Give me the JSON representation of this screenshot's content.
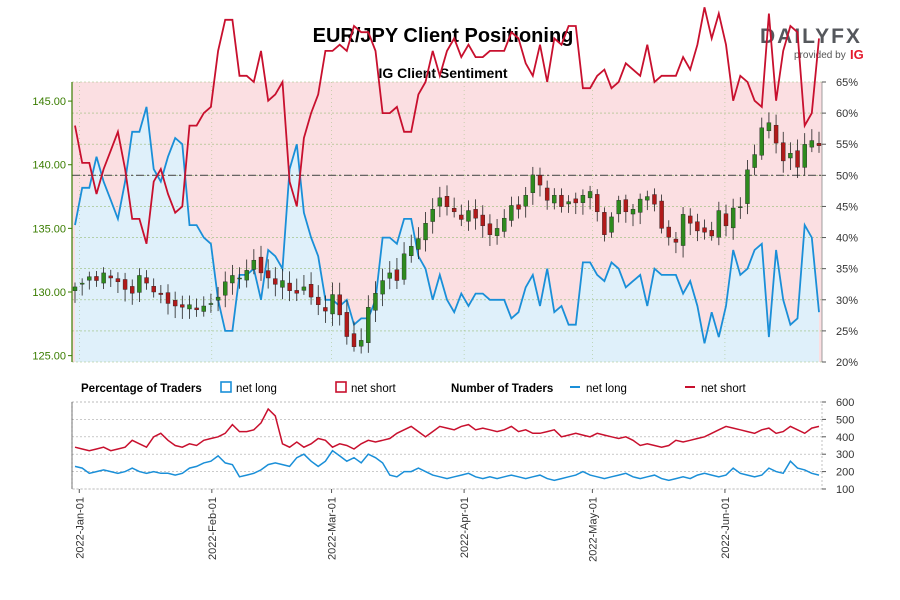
{
  "header": {
    "title": "EUR/JPY Client Positioning",
    "subtitle": "IG Client Sentiment"
  },
  "logo": {
    "text": "DAILYFX",
    "provided_by": "provided by",
    "ig": "IG",
    "color": "#55575c",
    "accent": "#e4192c"
  },
  "legend": {
    "pct_heading": "Percentage of Traders",
    "num_heading": "Number of Traders",
    "net_long": "net long",
    "net_short": "net short"
  },
  "colors": {
    "long": "#1a8fd8",
    "short": "#c8102e",
    "short_fill": "#fbdfe2",
    "long_fill": "#dff0fa",
    "price_axis": "#3a7d00",
    "up_candle": "#2e8b1e",
    "down_candle": "#b11a1a"
  },
  "chart_data": {
    "type": "line",
    "title": "EUR/JPY Client Positioning",
    "subtitle": "IG Client Sentiment",
    "x_dates": [
      "2022-Jan-01",
      "2022-Feb-01",
      "2022-Mar-01",
      "2022-Apr-01",
      "2022-May-01",
      "2022-Jun-01"
    ],
    "date_range": [
      "2021-12-31",
      "2022-06-23"
    ],
    "price": {
      "ylim": [
        124.5,
        146.5
      ],
      "ticks": [
        "125.00",
        "130.00",
        "135.00",
        "140.00",
        "145.00"
      ],
      "close": [
        130.4,
        130.7,
        131.2,
        130.9,
        131.5,
        131.1,
        130.8,
        130.2,
        129.9,
        131.3,
        130.7,
        130.0,
        129.8,
        129.1,
        128.9,
        128.8,
        129.0,
        128.6,
        128.9,
        129.1,
        129.6,
        130.8,
        131.3,
        131.1,
        131.7,
        132.5,
        131.5,
        131.1,
        130.6,
        130.9,
        130.1,
        129.9,
        130.4,
        129.6,
        129.0,
        128.5,
        129.8,
        128.2,
        126.5,
        125.7,
        126.2,
        128.8,
        129.9,
        130.9,
        131.5,
        130.9,
        133.0,
        133.6,
        134.2,
        135.4,
        136.5,
        137.4,
        136.7,
        136.3,
        135.7,
        136.4,
        135.8,
        135.2,
        134.5,
        135.0,
        135.8,
        136.8,
        136.5,
        137.6,
        139.2,
        138.4,
        137.2,
        137.6,
        136.7,
        137.1,
        137.0,
        137.6,
        137.9,
        136.3,
        134.5,
        135.9,
        137.2,
        136.3,
        136.5,
        137.3,
        137.5,
        136.9,
        135.0,
        134.3,
        133.9,
        136.1,
        135.4,
        134.8,
        134.7,
        134.4,
        136.4,
        135.2,
        136.6,
        136.7,
        139.6,
        140.8,
        142.9,
        143.3,
        141.7,
        140.3,
        140.9,
        139.8,
        141.6,
        141.9,
        141.5
      ],
      "candles": "daily OHLC, green=up, red=down"
    },
    "sentiment": {
      "ylim": [
        20,
        65
      ],
      "ticks": [
        "20%",
        "25%",
        "30%",
        "35%",
        "40%",
        "45%",
        "50%",
        "55%",
        "60%",
        "65%"
      ],
      "net_short_pct": [
        58,
        52,
        52,
        47,
        51,
        54,
        57,
        51,
        43,
        43,
        39,
        49,
        51,
        47,
        44,
        45,
        58,
        58,
        60,
        61,
        70,
        75,
        75,
        66,
        66,
        65,
        70,
        62,
        63,
        65,
        49,
        45,
        56,
        60,
        63,
        70,
        70,
        71,
        70,
        74,
        73,
        73,
        70,
        60,
        60,
        61,
        57,
        57,
        63,
        65,
        70,
        66,
        70,
        72,
        69,
        71,
        69,
        69,
        70,
        70,
        70,
        73,
        72,
        68,
        66,
        71,
        65,
        72,
        71,
        74,
        74,
        64,
        64,
        66,
        67,
        64,
        65,
        68,
        67,
        66,
        71,
        65,
        66,
        66,
        66,
        69,
        67,
        71,
        77,
        72,
        76,
        71,
        62,
        66,
        65,
        62,
        61,
        76,
        62,
        70,
        74,
        73,
        58,
        60,
        72
      ],
      "net_long_pct": [
        42,
        48,
        48,
        53,
        49,
        46,
        43,
        49,
        57,
        57,
        61,
        51,
        49,
        53,
        56,
        55,
        42,
        42,
        40,
        39,
        30,
        25,
        25,
        34,
        34,
        35,
        30,
        38,
        37,
        35,
        51,
        55,
        44,
        40,
        37,
        30,
        30,
        29,
        30,
        26,
        27,
        27,
        30,
        40,
        40,
        39,
        43,
        43,
        37,
        35,
        30,
        34,
        30,
        28,
        31,
        29,
        31,
        31,
        30,
        30,
        30,
        27,
        28,
        32,
        34,
        29,
        35,
        28,
        29,
        26,
        26,
        36,
        36,
        34,
        33,
        36,
        35,
        32,
        33,
        34,
        29,
        35,
        34,
        34,
        34,
        31,
        33,
        29,
        23,
        28,
        24,
        29,
        38,
        34,
        35,
        38,
        39,
        24,
        38,
        30,
        26,
        27,
        42,
        40,
        28
      ]
    },
    "traders": {
      "ylim": [
        100,
        600
      ],
      "ticks": [
        "100",
        "200",
        "300",
        "400",
        "500",
        "600"
      ],
      "net_long": [
        230,
        220,
        190,
        200,
        210,
        200,
        190,
        200,
        220,
        200,
        190,
        200,
        190,
        190,
        180,
        190,
        220,
        230,
        250,
        260,
        290,
        250,
        240,
        170,
        180,
        190,
        210,
        240,
        250,
        240,
        230,
        280,
        300,
        260,
        230,
        260,
        320,
        290,
        260,
        280,
        250,
        300,
        280,
        250,
        180,
        170,
        200,
        200,
        220,
        200,
        180,
        170,
        160,
        170,
        180,
        190,
        170,
        160,
        170,
        160,
        170,
        180,
        170,
        160,
        170,
        180,
        160,
        150,
        160,
        170,
        180,
        200,
        180,
        170,
        160,
        170,
        180,
        190,
        170,
        160,
        170,
        180,
        160,
        150,
        160,
        170,
        160,
        180,
        190,
        180,
        170,
        180,
        220,
        190,
        180,
        170,
        180,
        220,
        200,
        190,
        260,
        220,
        210,
        190,
        180
      ],
      "net_short": [
        340,
        330,
        320,
        330,
        340,
        320,
        330,
        340,
        380,
        360,
        340,
        400,
        420,
        380,
        350,
        340,
        360,
        350,
        380,
        390,
        400,
        420,
        470,
        430,
        430,
        440,
        480,
        560,
        520,
        360,
        340,
        370,
        340,
        360,
        390,
        380,
        340,
        360,
        350,
        330,
        360,
        380,
        370,
        380,
        390,
        420,
        440,
        460,
        430,
        400,
        430,
        460,
        450,
        440,
        460,
        470,
        440,
        450,
        440,
        430,
        440,
        460,
        430,
        440,
        420,
        420,
        430,
        440,
        400,
        410,
        420,
        410,
        400,
        420,
        410,
        400,
        390,
        400,
        380,
        350,
        360,
        350,
        340,
        350,
        380,
        370,
        380,
        390,
        400,
        420,
        440,
        460,
        450,
        440,
        430,
        420,
        440,
        450,
        420,
        430,
        460,
        440,
        420,
        450,
        460
      ]
    },
    "legend_position": "between-panels"
  }
}
